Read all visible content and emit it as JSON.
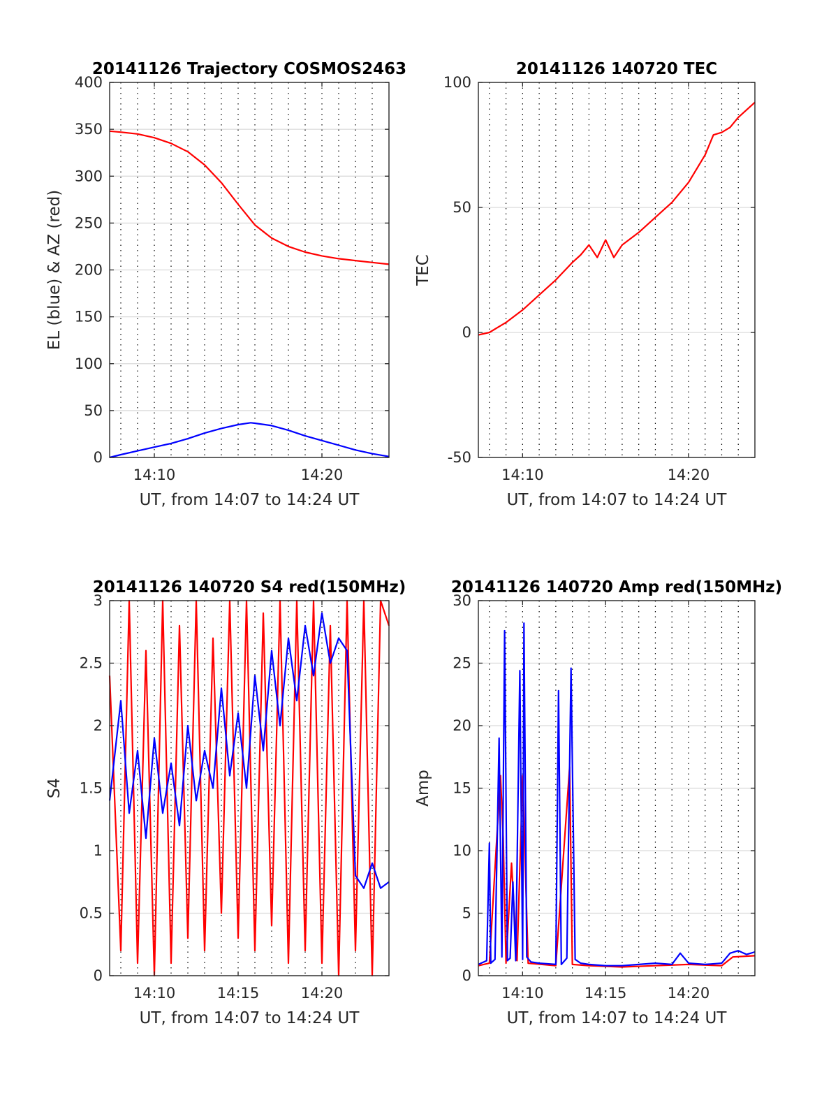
{
  "colors": {
    "red": "#ff0000",
    "blue": "#0000ff",
    "grid": "#d9d9d9",
    "minor_grid": "#000000",
    "axis": "#262626"
  },
  "chart_data": [
    {
      "id": "trajectory",
      "type": "line",
      "title": "20141126 Trajectory COSMOS2463",
      "xlabel": "UT, from 14:07 to 14:24 UT",
      "ylabel": "EL (blue) & AZ (red)",
      "xlim": [
        "14:07:20",
        "14:24:00"
      ],
      "ylim": [
        0,
        400
      ],
      "xticks": [
        "14:10",
        "14:20"
      ],
      "yticks": [
        0,
        50,
        100,
        150,
        200,
        250,
        300,
        350,
        400
      ],
      "minor_grid_every_min": 1,
      "series": [
        {
          "color": "red",
          "x": [
            "14:07:20",
            "14:08:00",
            "14:09:00",
            "14:10:00",
            "14:11:00",
            "14:12:00",
            "14:13:00",
            "14:14:00",
            "14:15:00",
            "14:16:00",
            "14:17:00",
            "14:18:00",
            "14:19:00",
            "14:20:00",
            "14:21:00",
            "14:22:00",
            "14:23:00",
            "14:24:00"
          ],
          "y": [
            348,
            347,
            345,
            341,
            335,
            326,
            312,
            293,
            270,
            248,
            234,
            225,
            219,
            215,
            212,
            210,
            208,
            206
          ]
        },
        {
          "color": "blue",
          "x": [
            "14:07:20",
            "14:08:00",
            "14:09:00",
            "14:10:00",
            "14:11:00",
            "14:12:00",
            "14:13:00",
            "14:14:00",
            "14:15:00",
            "14:15:45",
            "14:16:00",
            "14:17:00",
            "14:18:00",
            "14:19:00",
            "14:20:00",
            "14:21:00",
            "14:22:00",
            "14:23:00",
            "14:24:00"
          ],
          "y": [
            0,
            3,
            7,
            11,
            15,
            20,
            26,
            31,
            35,
            37,
            36.5,
            34,
            29,
            23,
            18,
            13,
            8,
            4,
            1
          ]
        }
      ]
    },
    {
      "id": "tec",
      "type": "line",
      "title": "20141126 140720 TEC",
      "xlabel": "UT, from 14:07 to 14:24 UT",
      "ylabel": "TEC",
      "xlim": [
        "14:07:20",
        "14:24:00"
      ],
      "ylim": [
        -50,
        100
      ],
      "xticks": [
        "14:10",
        "14:20"
      ],
      "yticks": [
        -50,
        0,
        50,
        100
      ],
      "minor_grid_every_min": 1,
      "series": [
        {
          "color": "red",
          "x": [
            "14:07:20",
            "14:08:00",
            "14:08:30",
            "14:09:00",
            "14:10:00",
            "14:11:00",
            "14:12:00",
            "14:13:00",
            "14:13:30",
            "14:14:00",
            "14:14:30",
            "14:15:00",
            "14:15:30",
            "14:16:00",
            "14:17:00",
            "14:18:00",
            "14:19:00",
            "14:20:00",
            "14:21:00",
            "14:21:30",
            "14:22:00",
            "14:22:30",
            "14:23:00",
            "14:24:00"
          ],
          "y": [
            -1,
            0,
            2,
            4,
            9,
            15,
            21,
            28,
            31,
            35,
            30,
            37,
            30,
            35,
            40,
            46,
            52,
            60,
            71,
            79,
            80,
            82,
            86,
            92
          ]
        }
      ]
    },
    {
      "id": "s4",
      "type": "line",
      "title": "20141126 140720 S4 red(150MHz)",
      "xlabel": "UT, from 14:07 to 14:24 UT",
      "ylabel": "S4",
      "xlim": [
        "14:07:20",
        "14:24:00"
      ],
      "ylim": [
        0,
        3
      ],
      "xticks": [
        "14:10",
        "14:15",
        "14:20"
      ],
      "yticks": [
        0,
        0.5,
        1,
        1.5,
        2,
        2.5,
        3
      ],
      "minor_grid_every_min": 1,
      "series": [
        {
          "color": "red",
          "x": [
            "14:07:20",
            "14:08:00",
            "14:08:30",
            "14:09:00",
            "14:09:30",
            "14:10:00",
            "14:10:30",
            "14:11:00",
            "14:11:30",
            "14:12:00",
            "14:12:30",
            "14:13:00",
            "14:13:30",
            "14:14:00",
            "14:14:30",
            "14:15:00",
            "14:15:30",
            "14:16:00",
            "14:16:30",
            "14:17:00",
            "14:17:30",
            "14:18:00",
            "14:18:30",
            "14:19:00",
            "14:19:30",
            "14:20:00",
            "14:20:30",
            "14:21:00",
            "14:21:30",
            "14:22:00",
            "14:22:30",
            "14:23:00",
            "14:23:30",
            "14:24:00"
          ],
          "y": [
            2.4,
            0.2,
            3.0,
            0.1,
            2.6,
            0.0,
            3.0,
            0.1,
            2.8,
            0.3,
            3.0,
            0.2,
            2.7,
            0.5,
            3.0,
            0.3,
            3.0,
            0.2,
            2.9,
            0.4,
            3.0,
            0.1,
            3.0,
            0.2,
            3.0,
            0.1,
            2.8,
            0.0,
            3.0,
            0.2,
            3.0,
            0.0,
            3.0,
            2.8
          ]
        },
        {
          "color": "blue",
          "x": [
            "14:07:20",
            "14:08:00",
            "14:08:30",
            "14:09:00",
            "14:09:30",
            "14:10:00",
            "14:10:30",
            "14:11:00",
            "14:11:30",
            "14:12:00",
            "14:12:30",
            "14:13:00",
            "14:13:30",
            "14:14:00",
            "14:14:30",
            "14:15:00",
            "14:15:30",
            "14:16:00",
            "14:16:30",
            "14:17:00",
            "14:17:30",
            "14:18:00",
            "14:18:30",
            "14:19:00",
            "14:19:30",
            "14:20:00",
            "14:20:30",
            "14:21:00",
            "14:21:30",
            "14:22:00",
            "14:22:30",
            "14:23:00",
            "14:23:30",
            "14:24:00"
          ],
          "y": [
            1.4,
            2.2,
            1.3,
            1.8,
            1.1,
            1.9,
            1.3,
            1.7,
            1.2,
            2.0,
            1.4,
            1.8,
            1.5,
            2.3,
            1.6,
            2.1,
            1.5,
            2.4,
            1.8,
            2.6,
            2.0,
            2.7,
            2.2,
            2.8,
            2.4,
            2.9,
            2.5,
            2.7,
            2.6,
            0.8,
            0.7,
            0.9,
            0.7,
            0.75
          ]
        }
      ]
    },
    {
      "id": "amp",
      "type": "line",
      "title": "20141126 140720 Amp red(150MHz)",
      "xlabel": "UT, from 14:07 to 14:24 UT",
      "ylabel": "Amp",
      "xlim": [
        "14:07:20",
        "14:24:00"
      ],
      "ylim": [
        0,
        30
      ],
      "xticks": [
        "14:10",
        "14:15",
        "14:20"
      ],
      "yticks": [
        0,
        5,
        10,
        15,
        20,
        25,
        30
      ],
      "minor_grid_every_min": 1,
      "series": [
        {
          "color": "red",
          "x": [
            "14:07:20",
            "14:08:00",
            "14:08:40",
            "14:08:50",
            "14:09:00",
            "14:09:20",
            "14:09:40",
            "14:10:00",
            "14:10:20",
            "14:12:00",
            "14:12:50",
            "14:13:00",
            "14:14:00",
            "14:16:00",
            "14:18:00",
            "14:20:00",
            "14:22:00",
            "14:22:40",
            "14:24:00"
          ],
          "y": [
            0.8,
            1.0,
            16.0,
            11.0,
            1.0,
            9.0,
            1.2,
            16.0,
            1.0,
            0.8,
            16.7,
            0.9,
            0.8,
            0.7,
            0.8,
            0.9,
            0.8,
            1.5,
            1.6
          ]
        },
        {
          "color": "blue",
          "x": [
            "14:07:20",
            "14:07:50",
            "14:08:00",
            "14:08:05",
            "14:08:20",
            "14:08:35",
            "14:08:45",
            "14:08:55",
            "14:09:05",
            "14:09:15",
            "14:09:25",
            "14:09:35",
            "14:09:50",
            "14:10:00",
            "14:10:05",
            "14:10:15",
            "14:10:30",
            "14:11:00",
            "14:12:00",
            "14:12:10",
            "14:12:20",
            "14:12:40",
            "14:12:55",
            "14:13:10",
            "14:13:30",
            "14:14:00",
            "14:15:00",
            "14:16:00",
            "14:17:00",
            "14:18:00",
            "14:19:00",
            "14:19:30",
            "14:20:00",
            "14:21:00",
            "14:22:00",
            "14:22:30",
            "14:23:00",
            "14:23:30",
            "14:24:00"
          ],
          "y": [
            0.9,
            1.2,
            10.6,
            1.0,
            1.3,
            19.0,
            1.5,
            27.6,
            1.2,
            1.4,
            7.5,
            1.2,
            24.4,
            1.3,
            28.2,
            1.5,
            1.1,
            1.0,
            0.9,
            22.8,
            0.9,
            1.4,
            24.6,
            1.3,
            1.0,
            0.9,
            0.8,
            0.8,
            0.9,
            1.0,
            0.9,
            1.8,
            1.0,
            0.9,
            1.0,
            1.8,
            2.0,
            1.7,
            1.9
          ]
        }
      ]
    }
  ]
}
